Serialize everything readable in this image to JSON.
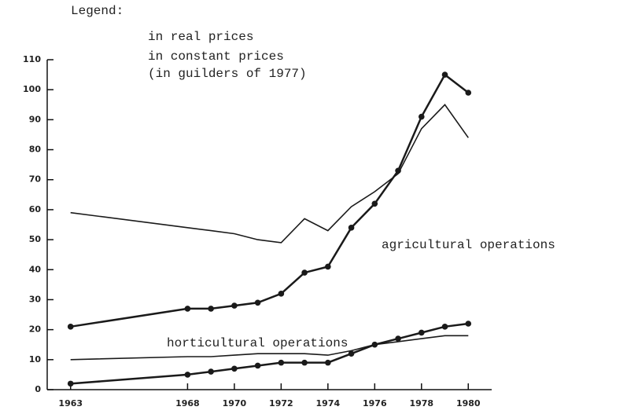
{
  "chart_data": {
    "type": "line",
    "legend": {
      "title": "Legend:",
      "entries": [
        "in real prices",
        "in constant prices",
        "(in guilders of 1977)"
      ]
    },
    "annotations": [
      "agricultural operations",
      "horticultural operations"
    ],
    "x": [
      1963,
      1968,
      1969,
      1970,
      1971,
      1972,
      1973,
      1974,
      1975,
      1976,
      1977,
      1978,
      1979,
      1980
    ],
    "series": [
      {
        "color": "#1a1a1a",
        "markers": true,
        "values": [
          21,
          27,
          27,
          28,
          29,
          32,
          39,
          41,
          54,
          62,
          73,
          91,
          105,
          99
        ]
      },
      {
        "color": "#1a1a1a",
        "markers": false,
        "values": [
          59,
          54,
          53,
          52,
          50,
          49,
          57,
          53,
          61,
          66,
          72,
          87,
          95,
          84
        ]
      },
      {
        "color": "#1a1a1a",
        "markers": true,
        "values": [
          2,
          5,
          6,
          7,
          8,
          9,
          9,
          9,
          12,
          15,
          17,
          19,
          21,
          22
        ]
      },
      {
        "color": "#1a1a1a",
        "markers": false,
        "values": [
          10,
          11,
          11,
          11.5,
          12,
          12,
          12,
          11.5,
          13,
          15,
          16,
          17,
          18,
          18
        ]
      }
    ],
    "xlim": [
      1962,
      1981
    ],
    "xticks": [
      1963,
      1968,
      1970,
      1972,
      1974,
      1976,
      1978,
      1980
    ],
    "ylim": [
      0,
      110
    ],
    "yticks": [
      0,
      10,
      20,
      30,
      40,
      50,
      60,
      70,
      80,
      90,
      100,
      110
    ],
    "grid": false
  }
}
